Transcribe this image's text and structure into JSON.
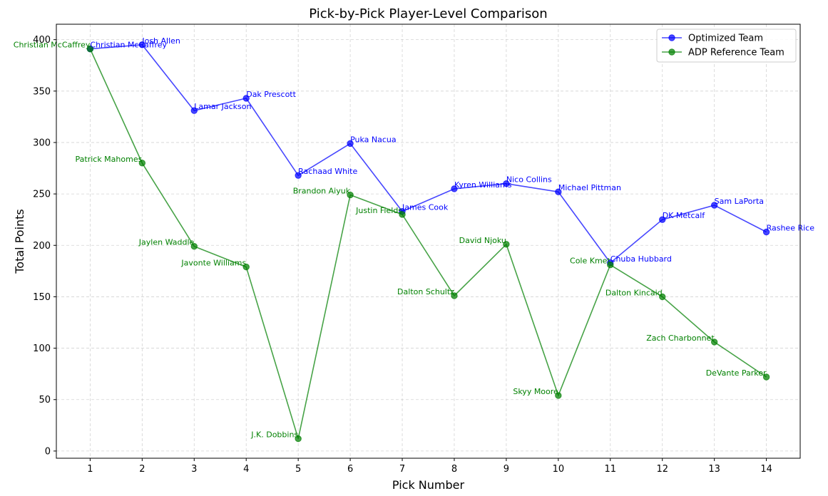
{
  "chart_data": {
    "type": "line",
    "title": "Pick-by-Pick Player-Level Comparison",
    "xlabel": "Pick Number",
    "ylabel": "Total Points",
    "x": [
      1,
      2,
      3,
      4,
      5,
      6,
      7,
      8,
      9,
      10,
      11,
      12,
      13,
      14
    ],
    "xlim": [
      0.35,
      14.65
    ],
    "ylim": [
      -7,
      415
    ],
    "yticks": [
      0,
      50,
      100,
      150,
      200,
      250,
      300,
      350,
      400
    ],
    "grid": true,
    "legend_position": "top-right",
    "series": [
      {
        "name": "Optimized Team",
        "color": "#0000ff",
        "label_color": "#0000ff",
        "values": [
          391,
          395,
          331,
          343,
          268,
          299,
          233,
          255,
          260,
          252,
          183,
          225,
          239,
          213
        ],
        "players": [
          "Christian McCaffrey",
          "Josh Allen",
          "Lamar Jackson",
          "Dak Prescott",
          "Rachaad White",
          "Puka Nacua",
          "James Cook",
          "Kyren Williams",
          "Nico Collins",
          "Michael Pittman",
          "Chuba Hubbard",
          "DK Metcalf",
          "Sam LaPorta",
          "Rashee Rice"
        ]
      },
      {
        "name": "ADP Reference Team",
        "color": "#008000",
        "label_color": "#008000",
        "values": [
          391,
          280,
          199,
          179,
          12,
          249,
          230,
          151,
          201,
          54,
          181,
          150,
          106,
          72
        ],
        "players": [
          "Christian McCaffrey",
          "Patrick Mahomes",
          "Jaylen Waddle",
          "Javonte Williams",
          "J.K. Dobbins",
          "Brandon Aiyuk",
          "Justin Fields",
          "Dalton Schultz",
          "David Njoku",
          "Skyy Moore",
          "Cole Kmet",
          "Dalton Kincaid",
          "Zach Charbonnet",
          "DeVante Parker"
        ]
      }
    ]
  }
}
